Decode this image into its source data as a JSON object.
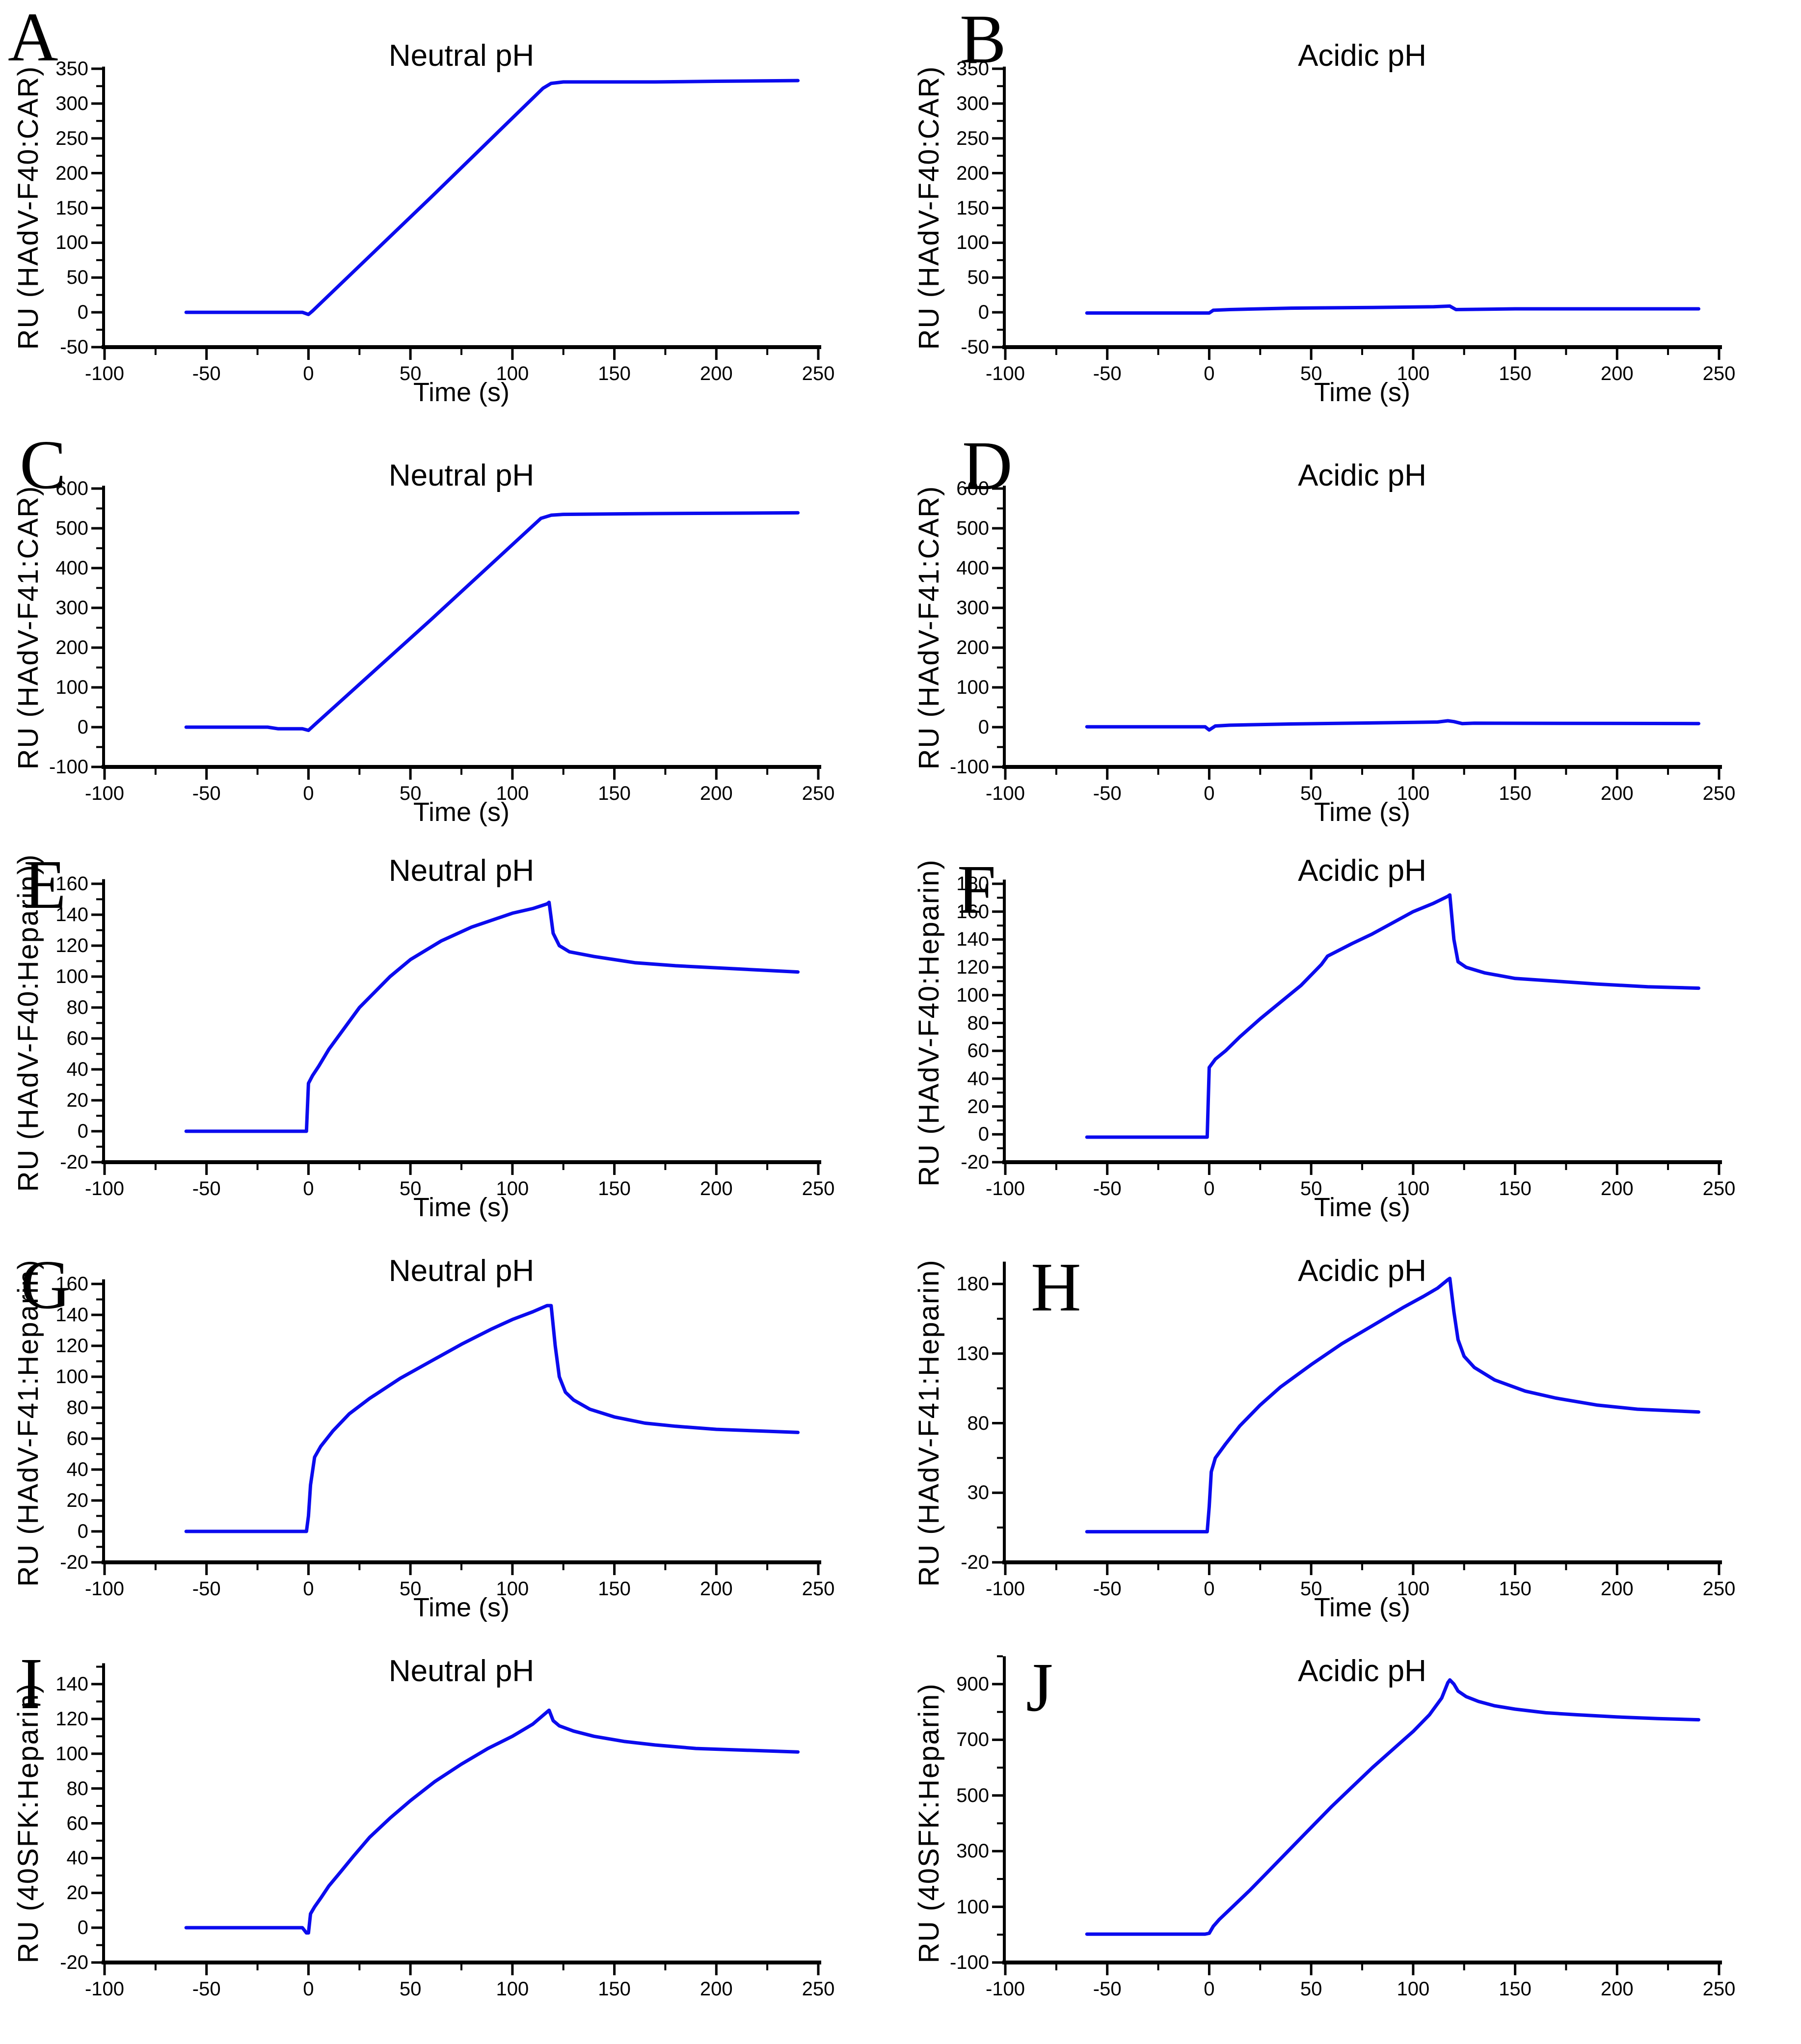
{
  "figure": {
    "background": "#ffffff",
    "curve_color": "#0b0bee",
    "axis_color": "#000000",
    "layout": "2 columns x 5 rows of SPR sensorgrams"
  },
  "xticks": [
    -100,
    -50,
    0,
    50,
    100,
    150,
    200,
    250
  ],
  "chart_data": [
    {
      "type": "line",
      "id": "A",
      "title": "Neutral pH",
      "y_label": "RU (HAdV-F40:CAR)",
      "x_label": "Time (s)",
      "x_range": [
        -100,
        250
      ],
      "ymin": -50,
      "y_axis_top": 353,
      "yticks": [
        -50,
        0,
        50,
        100,
        150,
        200,
        250,
        300,
        350
      ],
      "points": [
        [
          -60,
          0
        ],
        [
          -3,
          0
        ],
        [
          0,
          -3
        ],
        [
          2,
          2
        ],
        [
          60,
          165
        ],
        [
          115,
          322
        ],
        [
          119,
          329
        ],
        [
          125,
          331
        ],
        [
          170,
          331
        ],
        [
          200,
          332
        ],
        [
          240,
          333
        ]
      ]
    },
    {
      "type": "line",
      "id": "B",
      "title": "Acidic pH",
      "y_label": "RU (HAdV-F40:CAR)",
      "x_label": "Time (s)",
      "x_range": [
        -100,
        250
      ],
      "ymin": -50,
      "y_axis_top": 353,
      "yticks": [
        -50,
        0,
        50,
        100,
        150,
        200,
        250,
        300,
        350
      ],
      "points": [
        [
          -60,
          -1
        ],
        [
          0,
          -1
        ],
        [
          2,
          3
        ],
        [
          10,
          4
        ],
        [
          40,
          6
        ],
        [
          80,
          7
        ],
        [
          110,
          8
        ],
        [
          118,
          9
        ],
        [
          121,
          4
        ],
        [
          150,
          5
        ],
        [
          240,
          5
        ]
      ]
    },
    {
      "type": "line",
      "id": "C",
      "title": "Neutral pH",
      "y_label": "RU (HAdV-F41:CAR)",
      "x_label": "Time (s)",
      "x_range": [
        -100,
        250
      ],
      "ymin": -100,
      "y_axis_top": 607,
      "yticks": [
        -100,
        0,
        100,
        200,
        300,
        400,
        500,
        600
      ],
      "points": [
        [
          -60,
          0
        ],
        [
          -20,
          0
        ],
        [
          -15,
          -4
        ],
        [
          -3,
          -4
        ],
        [
          0,
          -8
        ],
        [
          3,
          6
        ],
        [
          60,
          270
        ],
        [
          114,
          525
        ],
        [
          119,
          533
        ],
        [
          125,
          535
        ],
        [
          170,
          537
        ],
        [
          240,
          539
        ]
      ]
    },
    {
      "type": "line",
      "id": "D",
      "title": "Acidic pH",
      "y_label": "RU (HAdV-F41:CAR)",
      "x_label": "Time (s)",
      "x_range": [
        -100,
        250
      ],
      "ymin": -100,
      "y_axis_top": 607,
      "yticks": [
        -100,
        0,
        100,
        200,
        300,
        400,
        500,
        600
      ],
      "points": [
        [
          -60,
          1
        ],
        [
          -2,
          1
        ],
        [
          0,
          -7
        ],
        [
          3,
          3
        ],
        [
          10,
          5
        ],
        [
          40,
          8
        ],
        [
          70,
          10
        ],
        [
          100,
          12
        ],
        [
          112,
          13
        ],
        [
          117,
          16
        ],
        [
          120,
          14
        ],
        [
          124,
          9
        ],
        [
          130,
          10
        ],
        [
          240,
          9
        ]
      ]
    },
    {
      "type": "line",
      "id": "E",
      "title": "Neutral pH",
      "y_label": "RU (HAdV-F40:Heparin))",
      "x_label": "Time (s)",
      "x_range": [
        -100,
        250
      ],
      "ymin": -20,
      "y_axis_top": 163,
      "yticks": [
        -20,
        0,
        20,
        40,
        60,
        80,
        100,
        120,
        140,
        160
      ],
      "points": [
        [
          -60,
          0
        ],
        [
          -1,
          0
        ],
        [
          0,
          31
        ],
        [
          2,
          36
        ],
        [
          5,
          42
        ],
        [
          10,
          53
        ],
        [
          25,
          80
        ],
        [
          40,
          100
        ],
        [
          50,
          111
        ],
        [
          65,
          123
        ],
        [
          80,
          132
        ],
        [
          100,
          141
        ],
        [
          110,
          144
        ],
        [
          117,
          147
        ],
        [
          118,
          148
        ],
        [
          120,
          128
        ],
        [
          123,
          120
        ],
        [
          128,
          116
        ],
        [
          140,
          113
        ],
        [
          160,
          109
        ],
        [
          180,
          107
        ],
        [
          210,
          105
        ],
        [
          240,
          103
        ]
      ]
    },
    {
      "type": "line",
      "id": "F",
      "title": "Acidic pH",
      "y_label": "RU (HAdV-F40:Heparin)",
      "x_label": "Time (s)",
      "x_range": [
        -100,
        250
      ],
      "ymin": -20,
      "y_axis_top": 183,
      "yticks": [
        -20,
        0,
        20,
        40,
        60,
        80,
        100,
        120,
        140,
        160,
        180
      ],
      "points": [
        [
          -60,
          -2
        ],
        [
          -1,
          -2
        ],
        [
          0,
          48
        ],
        [
          3,
          54
        ],
        [
          8,
          60
        ],
        [
          15,
          70
        ],
        [
          25,
          83
        ],
        [
          35,
          95
        ],
        [
          45,
          107
        ],
        [
          55,
          122
        ],
        [
          58,
          128
        ],
        [
          62,
          131
        ],
        [
          70,
          137
        ],
        [
          80,
          144
        ],
        [
          90,
          152
        ],
        [
          100,
          160
        ],
        [
          110,
          166
        ],
        [
          117,
          171
        ],
        [
          118,
          172
        ],
        [
          120,
          140
        ],
        [
          122,
          124
        ],
        [
          126,
          120
        ],
        [
          135,
          116
        ],
        [
          150,
          112
        ],
        [
          170,
          110
        ],
        [
          190,
          108
        ],
        [
          215,
          106
        ],
        [
          240,
          105
        ]
      ]
    },
    {
      "type": "line",
      "id": "G",
      "title": "Neutral pH",
      "y_label": "RU (HAdV-F41:Heparin)",
      "x_label": "Time (s)",
      "x_range": [
        -100,
        250
      ],
      "ymin": -20,
      "y_axis_top": 163,
      "yticks": [
        -20,
        0,
        20,
        40,
        60,
        80,
        100,
        120,
        140,
        160
      ],
      "points": [
        [
          -60,
          0
        ],
        [
          -1,
          0
        ],
        [
          0,
          10
        ],
        [
          1,
          30
        ],
        [
          3,
          48
        ],
        [
          6,
          55
        ],
        [
          12,
          65
        ],
        [
          20,
          76
        ],
        [
          30,
          86
        ],
        [
          45,
          99
        ],
        [
          60,
          110
        ],
        [
          75,
          121
        ],
        [
          90,
          131
        ],
        [
          100,
          137
        ],
        [
          110,
          142
        ],
        [
          117,
          146
        ],
        [
          119,
          146
        ],
        [
          121,
          120
        ],
        [
          123,
          100
        ],
        [
          126,
          90
        ],
        [
          130,
          85
        ],
        [
          138,
          79
        ],
        [
          150,
          74
        ],
        [
          165,
          70
        ],
        [
          180,
          68
        ],
        [
          200,
          66
        ],
        [
          220,
          65
        ],
        [
          240,
          64
        ]
      ]
    },
    {
      "type": "line",
      "id": "H",
      "title": "Acidic pH",
      "y_label": "RU (HAdV-F41:Heparin)",
      "x_label": "Time (s)",
      "x_range": [
        -100,
        250
      ],
      "ymin": -20,
      "y_axis_top": 196,
      "yticks": [
        -20,
        30,
        80,
        130,
        180
      ],
      "points": [
        [
          -60,
          2
        ],
        [
          -1,
          2
        ],
        [
          0,
          20
        ],
        [
          1,
          45
        ],
        [
          3,
          55
        ],
        [
          8,
          65
        ],
        [
          15,
          78
        ],
        [
          25,
          93
        ],
        [
          35,
          106
        ],
        [
          50,
          122
        ],
        [
          65,
          137
        ],
        [
          80,
          150
        ],
        [
          95,
          163
        ],
        [
          105,
          171
        ],
        [
          112,
          177
        ],
        [
          117,
          183
        ],
        [
          118,
          184
        ],
        [
          120,
          160
        ],
        [
          122,
          140
        ],
        [
          125,
          128
        ],
        [
          130,
          120
        ],
        [
          140,
          111
        ],
        [
          155,
          103
        ],
        [
          170,
          98
        ],
        [
          190,
          93
        ],
        [
          210,
          90
        ],
        [
          240,
          88
        ]
      ]
    },
    {
      "type": "line",
      "id": "I",
      "title": "Neutral pH",
      "y_label": "RU (40SFK:Heparin)",
      "x_label": "",
      "x_range": [
        -100,
        250
      ],
      "ymin": -20,
      "y_axis_top": 152,
      "yticks": [
        -20,
        0,
        20,
        40,
        60,
        80,
        100,
        120,
        140
      ],
      "points": [
        [
          -60,
          0
        ],
        [
          -3,
          0
        ],
        [
          -1,
          -3
        ],
        [
          0,
          -3
        ],
        [
          1,
          8
        ],
        [
          3,
          12
        ],
        [
          6,
          17
        ],
        [
          10,
          24
        ],
        [
          15,
          31
        ],
        [
          22,
          41
        ],
        [
          30,
          52
        ],
        [
          40,
          63
        ],
        [
          50,
          73
        ],
        [
          62,
          84
        ],
        [
          75,
          94
        ],
        [
          88,
          103
        ],
        [
          100,
          110
        ],
        [
          110,
          117
        ],
        [
          117,
          124
        ],
        [
          118,
          125
        ],
        [
          120,
          119
        ],
        [
          123,
          116
        ],
        [
          130,
          113
        ],
        [
          140,
          110
        ],
        [
          155,
          107
        ],
        [
          170,
          105
        ],
        [
          190,
          103
        ],
        [
          215,
          102
        ],
        [
          240,
          101
        ]
      ]
    },
    {
      "type": "line",
      "id": "J",
      "title": "Acidic pH",
      "y_label": "RU (40SFK:Heparin)",
      "x_label": "",
      "x_range": [
        -100,
        250
      ],
      "ymin": -100,
      "y_axis_top": 1000,
      "yticks": [
        -100,
        100,
        300,
        500,
        700,
        900
      ],
      "points": [
        [
          -60,
          2
        ],
        [
          -2,
          2
        ],
        [
          0,
          5
        ],
        [
          2,
          30
        ],
        [
          5,
          55
        ],
        [
          10,
          90
        ],
        [
          20,
          160
        ],
        [
          30,
          235
        ],
        [
          40,
          310
        ],
        [
          50,
          385
        ],
        [
          60,
          460
        ],
        [
          70,
          530
        ],
        [
          80,
          600
        ],
        [
          90,
          665
        ],
        [
          100,
          730
        ],
        [
          108,
          790
        ],
        [
          114,
          850
        ],
        [
          117,
          905
        ],
        [
          118,
          915
        ],
        [
          120,
          900
        ],
        [
          122,
          875
        ],
        [
          126,
          855
        ],
        [
          132,
          838
        ],
        [
          140,
          822
        ],
        [
          150,
          810
        ],
        [
          165,
          797
        ],
        [
          180,
          790
        ],
        [
          200,
          782
        ],
        [
          220,
          776
        ],
        [
          240,
          772
        ]
      ]
    }
  ]
}
